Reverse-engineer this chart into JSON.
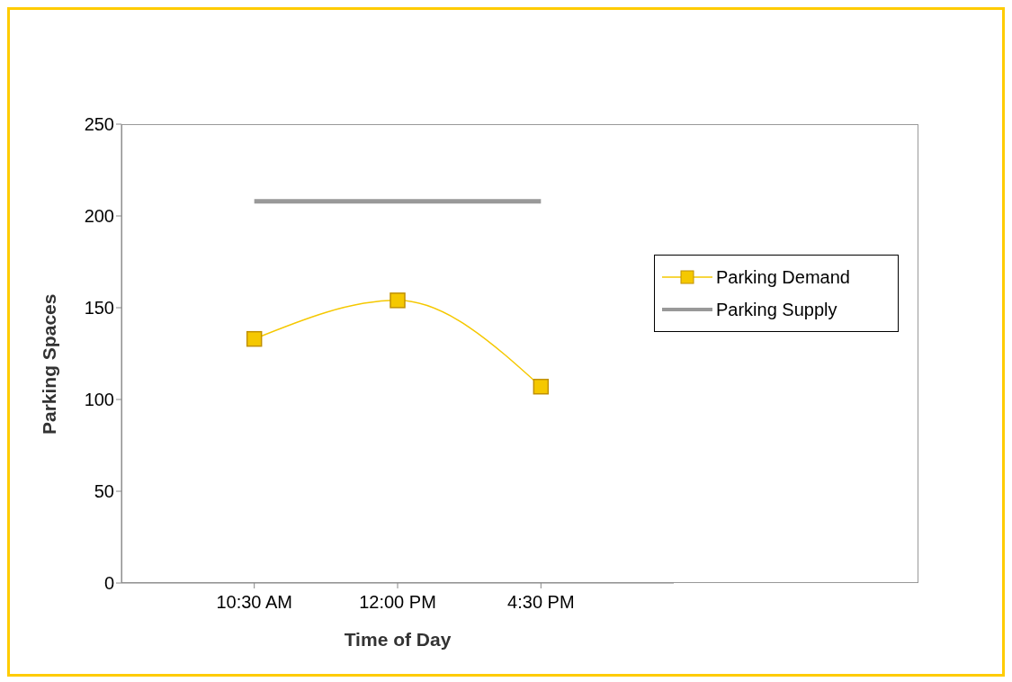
{
  "chart_data": {
    "type": "line",
    "xlabel": "Time of Day",
    "ylabel": "Parking Spaces",
    "categories": [
      "10:30 AM",
      "12:00 PM",
      "4:30 PM"
    ],
    "series": [
      {
        "name": "Parking Demand",
        "color": "#f5c800",
        "values": [
          133,
          154,
          107
        ],
        "marker": "square"
      },
      {
        "name": "Parking Supply",
        "color": "#999999",
        "values": [
          208,
          208,
          208
        ],
        "marker": "none"
      }
    ],
    "ylim": [
      0,
      250
    ],
    "yticks": [
      0,
      50,
      100,
      150,
      200,
      250
    ],
    "legend": "right"
  }
}
